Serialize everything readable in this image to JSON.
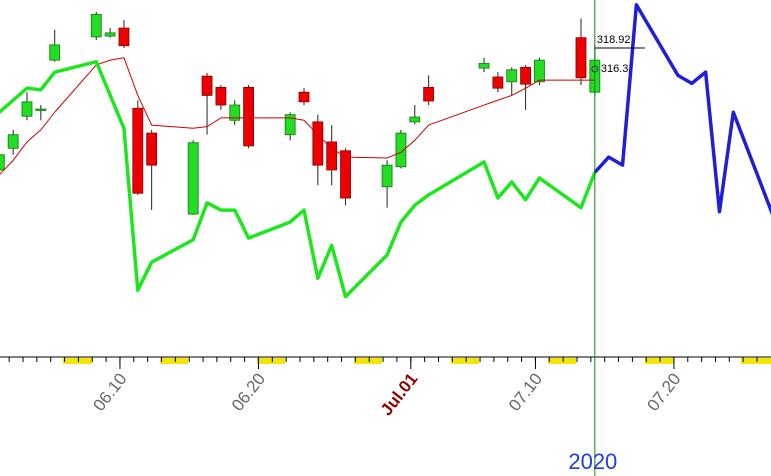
{
  "chart_data": {
    "type": "candlestick",
    "x": [
      1,
      2,
      3,
      4,
      5,
      8,
      9,
      10,
      11,
      12,
      15,
      16,
      17,
      18,
      19,
      22,
      23,
      24,
      25,
      26,
      29,
      30,
      31,
      32,
      36,
      37,
      38,
      39,
      40,
      43,
      44
    ],
    "open": [
      303.7,
      306.4,
      310.4,
      311.2,
      317.4,
      320.3,
      320.4,
      321.4,
      311.4,
      308.3,
      298.2,
      315.4,
      314.0,
      309.9,
      314.0,
      308.1,
      313.4,
      309.7,
      307.2,
      306.1,
      301.6,
      304.1,
      309.7,
      314.0,
      316.4,
      315.3,
      314.7,
      316.5,
      314.7,
      320.2,
      313.4
    ],
    "high": [
      306.1,
      308.7,
      313.4,
      311.8,
      321.2,
      323.4,
      321.4,
      322.4,
      312.4,
      308.7,
      307.4,
      315.8,
      314.3,
      312.4,
      314.3,
      310.9,
      313.9,
      310.6,
      309.3,
      306.4,
      304.9,
      308.7,
      311.8,
      315.5,
      317.7,
      315.9,
      316.5,
      316.8,
      317.7,
      322.6,
      319.3
    ],
    "low": [
      303.4,
      305.6,
      309.9,
      309.9,
      317.2,
      319.9,
      320.2,
      318.9,
      300.6,
      298.7,
      298.1,
      308.1,
      311.2,
      309.3,
      306.4,
      307.4,
      311.8,
      301.8,
      301.8,
      299.3,
      299.0,
      303.9,
      309.4,
      311.8,
      315.9,
      313.4,
      313.0,
      311.2,
      314.3,
      314.3,
      313.0
    ],
    "close": [
      305.6,
      308.1,
      312.2,
      311.3,
      319.3,
      323.1,
      320.8,
      319.2,
      300.8,
      304.3,
      307.1,
      313.0,
      311.8,
      311.8,
      306.7,
      310.6,
      312.2,
      304.3,
      303.7,
      300.2,
      304.3,
      308.3,
      310.3,
      312.3,
      317.0,
      313.9,
      316.2,
      314.4,
      317.4,
      315.2,
      317.4
    ],
    "up_color": "#22dd22",
    "down_color": "#ee0000",
    "series": [
      {
        "color": "#cc0000",
        "width": 1,
        "x": [
          1,
          2,
          3,
          4,
          5,
          8,
          9,
          10,
          11,
          12,
          15,
          16,
          17,
          18,
          19,
          22,
          23,
          24,
          25,
          26,
          29,
          30,
          31,
          32,
          36,
          37,
          38,
          39,
          40,
          43,
          44
        ],
        "values": [
          303.1,
          304.9,
          307.2,
          308.7,
          310.9,
          316.8,
          317.4,
          317.7,
          313.0,
          309.3,
          308.9,
          309.1,
          310.2,
          310.2,
          310.2,
          310.2,
          309.9,
          308.1,
          306.4,
          305.3,
          305.2,
          305.9,
          307.4,
          309.3,
          311.8,
          312.4,
          313.0,
          313.9,
          314.9,
          314.9,
          314.9
        ]
      },
      {
        "color": "#1ee61e",
        "width": 3.5,
        "x": [
          1,
          2,
          3,
          4,
          5,
          8,
          10,
          11,
          12,
          15,
          16,
          17,
          18,
          19,
          22,
          23,
          24,
          25,
          26,
          29,
          30,
          31,
          32,
          36,
          37,
          38,
          39,
          40,
          43,
          44
        ],
        "values": [
          310.9,
          312.4,
          313.9,
          313.7,
          315.9,
          317.2,
          308.9,
          288.7,
          292.2,
          295.0,
          299.6,
          298.7,
          298.7,
          295.2,
          297.2,
          298.7,
          290.2,
          294.3,
          287.9,
          293.1,
          297.2,
          299.3,
          300.6,
          304.7,
          300.2,
          302.2,
          300.0,
          302.7,
          299.0,
          303.4
        ]
      },
      {
        "color": "#1f1fd6",
        "width": 3.5,
        "x": [
          44,
          45,
          46,
          47,
          50,
          51,
          52,
          53,
          54,
          57
        ],
        "values": [
          303.4,
          305.3,
          304.3,
          324.3,
          315.5,
          314.5,
          315.9,
          298.5,
          310.9,
          297.4
        ]
      }
    ],
    "price_marks": [
      318.92,
      316.3
    ],
    "cursor_x": 44,
    "cursor_label": "2020",
    "xlim": [
      1.05,
      56.72
    ],
    "ylim": [
      280,
      324.9
    ],
    "xticks": [
      {
        "value": 10,
        "label": "06.10"
      },
      {
        "value": 20,
        "label": "06.20"
      },
      {
        "value": 31,
        "label": "Jul.01"
      },
      {
        "value": 40,
        "label": "07.10"
      },
      {
        "value": 50,
        "label": "07.20"
      }
    ],
    "highlight_tick": 2
  }
}
